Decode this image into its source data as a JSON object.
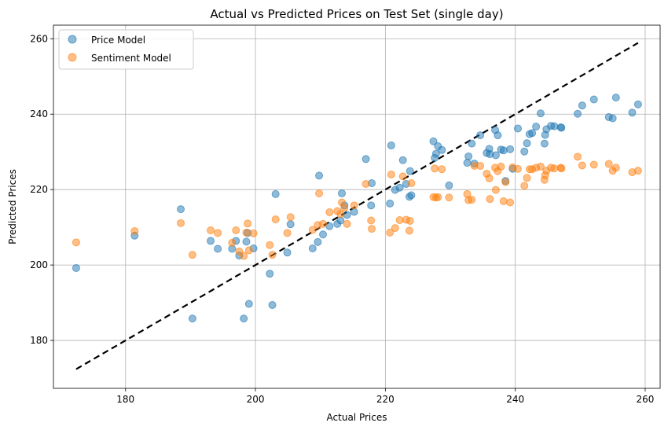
{
  "chart_data": {
    "type": "scatter",
    "title": "Actual vs Predicted Prices on Test Set (single day)",
    "xlabel": "Actual Prices",
    "ylabel": "Predicted Prices",
    "xlim": [
      168.9,
      262.3
    ],
    "ylim": [
      167.3,
      263.6
    ],
    "xticks": [
      180,
      200,
      220,
      240,
      260
    ],
    "yticks": [
      180,
      200,
      220,
      240,
      260
    ],
    "grid": true,
    "legend_position": "top-left",
    "reference_line": {
      "x": [
        172.4,
        258.9
      ],
      "y": [
        172.4,
        258.9
      ],
      "style": "dashed",
      "color": "#000000"
    },
    "series": [
      {
        "name": "Price Model",
        "color": "#1f77b4",
        "points": [
          [
            172.4,
            199.2
          ],
          [
            181.4,
            207.8
          ],
          [
            188.5,
            214.8
          ],
          [
            190.3,
            185.8
          ],
          [
            193.1,
            206.4
          ],
          [
            194.2,
            204.3
          ],
          [
            196.4,
            204.3
          ],
          [
            197.0,
            206.4
          ],
          [
            197.5,
            202.5
          ],
          [
            198.2,
            185.8
          ],
          [
            198.6,
            206.2
          ],
          [
            198.8,
            208.5
          ],
          [
            199.0,
            189.7
          ],
          [
            199.7,
            204.4
          ],
          [
            202.2,
            197.7
          ],
          [
            202.6,
            189.4
          ],
          [
            203.1,
            218.8
          ],
          [
            204.9,
            203.3
          ],
          [
            205.4,
            210.8
          ],
          [
            208.8,
            204.4
          ],
          [
            209.6,
            206.1
          ],
          [
            209.8,
            223.7
          ],
          [
            210.4,
            208.1
          ],
          [
            211.4,
            210.3
          ],
          [
            212.6,
            210.9
          ],
          [
            213.1,
            211.8
          ],
          [
            213.3,
            219.0
          ],
          [
            213.7,
            215.8
          ],
          [
            214.1,
            213.3
          ],
          [
            215.2,
            214.1
          ],
          [
            217.0,
            228.1
          ],
          [
            217.8,
            215.8
          ],
          [
            217.9,
            221.7
          ],
          [
            220.7,
            216.3
          ],
          [
            220.9,
            231.7
          ],
          [
            221.5,
            219.9
          ],
          [
            222.2,
            220.5
          ],
          [
            222.7,
            227.8
          ],
          [
            223.2,
            221.5
          ],
          [
            223.7,
            218.1
          ],
          [
            223.8,
            224.9
          ],
          [
            224.0,
            218.5
          ],
          [
            227.4,
            232.8
          ],
          [
            227.6,
            228.4
          ],
          [
            227.8,
            229.5
          ],
          [
            228.1,
            231.5
          ],
          [
            228.7,
            230.5
          ],
          [
            229.8,
            221.1
          ],
          [
            232.6,
            227.1
          ],
          [
            232.8,
            228.8
          ],
          [
            233.3,
            232.2
          ],
          [
            233.7,
            226.9
          ],
          [
            234.6,
            234.4
          ],
          [
            235.6,
            229.7
          ],
          [
            236.0,
            230.8
          ],
          [
            236.1,
            229.4
          ],
          [
            236.9,
            235.8
          ],
          [
            237.0,
            229.1
          ],
          [
            237.3,
            234.4
          ],
          [
            237.8,
            230.6
          ],
          [
            238.2,
            230.4
          ],
          [
            238.5,
            222.3
          ],
          [
            239.2,
            230.7
          ],
          [
            239.6,
            225.5
          ],
          [
            240.4,
            236.2
          ],
          [
            241.4,
            230.1
          ],
          [
            241.8,
            232.3
          ],
          [
            242.2,
            234.7
          ],
          [
            242.6,
            235.0
          ],
          [
            243.2,
            236.7
          ],
          [
            243.9,
            240.2
          ],
          [
            244.5,
            232.2
          ],
          [
            244.6,
            234.5
          ],
          [
            244.8,
            236.0
          ],
          [
            245.5,
            236.9
          ],
          [
            246.0,
            236.8
          ],
          [
            247.0,
            236.5
          ],
          [
            247.1,
            236.4
          ],
          [
            249.6,
            240.1
          ],
          [
            250.3,
            242.3
          ],
          [
            252.1,
            243.9
          ],
          [
            254.4,
            239.2
          ],
          [
            255.0,
            238.9
          ],
          [
            255.5,
            244.4
          ],
          [
            258.0,
            240.4
          ],
          [
            258.9,
            242.6
          ]
        ]
      },
      {
        "name": "Sentiment Model",
        "color": "#ff7f0e",
        "points": [
          [
            172.4,
            206.0
          ],
          [
            181.4,
            209.0
          ],
          [
            188.5,
            211.1
          ],
          [
            190.3,
            202.7
          ],
          [
            193.1,
            209.2
          ],
          [
            194.2,
            208.5
          ],
          [
            196.4,
            205.9
          ],
          [
            197.0,
            209.2
          ],
          [
            197.5,
            203.6
          ],
          [
            198.2,
            202.4
          ],
          [
            198.6,
            208.6
          ],
          [
            198.8,
            211.0
          ],
          [
            199.0,
            203.9
          ],
          [
            199.7,
            208.4
          ],
          [
            202.2,
            205.3
          ],
          [
            202.6,
            202.7
          ],
          [
            203.1,
            212.1
          ],
          [
            204.9,
            208.5
          ],
          [
            205.4,
            212.7
          ],
          [
            208.8,
            209.3
          ],
          [
            209.6,
            210.6
          ],
          [
            209.8,
            219.0
          ],
          [
            210.4,
            210.9
          ],
          [
            211.4,
            214.0
          ],
          [
            212.6,
            214.3
          ],
          [
            213.1,
            213.5
          ],
          [
            213.3,
            216.6
          ],
          [
            213.7,
            215.2
          ],
          [
            214.1,
            210.9
          ],
          [
            215.2,
            215.8
          ],
          [
            217.0,
            221.5
          ],
          [
            217.8,
            211.8
          ],
          [
            217.9,
            209.6
          ],
          [
            220.7,
            208.6
          ],
          [
            220.9,
            224.0
          ],
          [
            221.5,
            209.8
          ],
          [
            222.2,
            211.9
          ],
          [
            222.7,
            223.5
          ],
          [
            223.2,
            212.0
          ],
          [
            223.7,
            209.1
          ],
          [
            223.8,
            211.7
          ],
          [
            224.0,
            221.7
          ],
          [
            227.4,
            218.0
          ],
          [
            227.6,
            225.6
          ],
          [
            227.8,
            217.9
          ],
          [
            228.1,
            218.0
          ],
          [
            228.7,
            225.4
          ],
          [
            229.8,
            217.9
          ],
          [
            232.6,
            218.8
          ],
          [
            232.8,
            217.2
          ],
          [
            233.3,
            217.3
          ],
          [
            233.7,
            226.3
          ],
          [
            234.6,
            226.3
          ],
          [
            235.6,
            224.2
          ],
          [
            236.0,
            223.0
          ],
          [
            236.1,
            217.5
          ],
          [
            236.9,
            225.8
          ],
          [
            237.0,
            219.9
          ],
          [
            237.3,
            224.9
          ],
          [
            237.8,
            226.1
          ],
          [
            238.2,
            216.9
          ],
          [
            238.5,
            222.0
          ],
          [
            239.2,
            216.6
          ],
          [
            239.6,
            225.9
          ],
          [
            240.4,
            225.5
          ],
          [
            241.4,
            221.0
          ],
          [
            241.8,
            223.1
          ],
          [
            242.2,
            225.4
          ],
          [
            242.6,
            225.4
          ],
          [
            243.2,
            225.8
          ],
          [
            243.9,
            226.1
          ],
          [
            244.5,
            222.6
          ],
          [
            244.6,
            223.8
          ],
          [
            244.8,
            225.0
          ],
          [
            245.5,
            225.8
          ],
          [
            246.0,
            225.6
          ],
          [
            247.0,
            225.8
          ],
          [
            247.1,
            225.6
          ],
          [
            249.6,
            228.7
          ],
          [
            250.3,
            226.4
          ],
          [
            252.1,
            226.6
          ],
          [
            254.4,
            226.8
          ],
          [
            255.0,
            225.0
          ],
          [
            255.5,
            225.8
          ],
          [
            258.0,
            224.6
          ],
          [
            258.9,
            225.0
          ]
        ]
      }
    ]
  }
}
